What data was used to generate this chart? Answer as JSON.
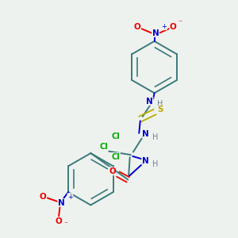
{
  "bg": "#eef2ee",
  "colors": {
    "C": "#3a7a7a",
    "N": "#0000cc",
    "O": "#ee0000",
    "S": "#bbaa00",
    "Cl": "#00aa00",
    "H": "#708090",
    "bond": "#3a7a7a"
  },
  "figsize": [
    3.0,
    3.0
  ],
  "dpi": 100
}
